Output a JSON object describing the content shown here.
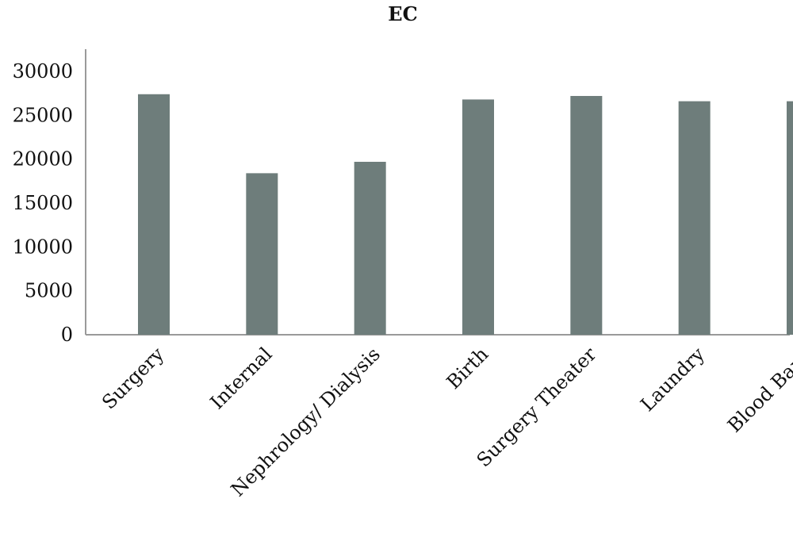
{
  "chart_data": {
    "type": "bar",
    "title": "EC",
    "xlabel": "",
    "ylabel": "",
    "categories": [
      "Surgery",
      "Internal",
      "Nephrology/ Dialysis",
      "Birth",
      "Surgery Theater",
      "Laundry",
      "Blood Bank"
    ],
    "values": [
      27400,
      18400,
      19700,
      26800,
      27200,
      26600,
      26600
    ],
    "ylim": [
      0,
      30000
    ],
    "yticks": [
      "0",
      "5000",
      "10000",
      "15000",
      "20000",
      "25000",
      "30000"
    ],
    "grid": false,
    "legend": "none",
    "bar_color": "#6e7d7b"
  }
}
